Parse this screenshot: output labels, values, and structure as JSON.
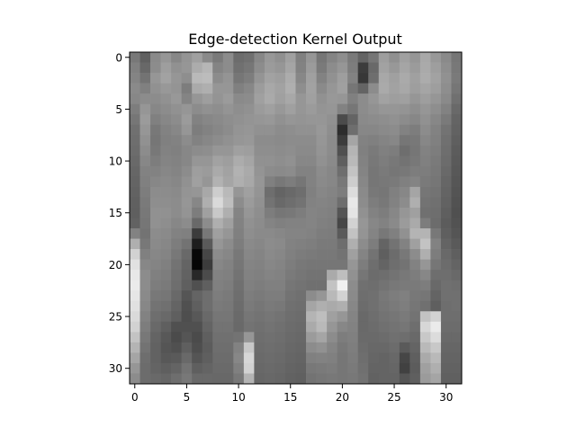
{
  "chart_data": {
    "type": "heatmap",
    "title": "Edge-detection Kernel Output",
    "xlabel": "",
    "ylabel": "",
    "colormap": "gray",
    "xlim": [
      -0.5,
      31.5
    ],
    "ylim": [
      31.5,
      -0.5
    ],
    "xticks": [
      0,
      5,
      10,
      15,
      20,
      25,
      30
    ],
    "yticks": [
      0,
      5,
      10,
      15,
      20,
      25,
      30
    ],
    "grid": false,
    "legend": "none",
    "rows": 32,
    "cols": 32,
    "vmin": 0,
    "vmax": 255,
    "values": [
      [
        120,
        96,
        138,
        150,
        135,
        148,
        160,
        138,
        122,
        140,
        108,
        112,
        135,
        152,
        144,
        160,
        128,
        150,
        118,
        132,
        142,
        122,
        100,
        118,
        158,
        144,
        160,
        150,
        168,
        152,
        138,
        118
      ],
      [
        128,
        104,
        140,
        158,
        145,
        150,
        172,
        182,
        132,
        140,
        112,
        118,
        140,
        155,
        150,
        165,
        130,
        155,
        122,
        140,
        150,
        125,
        60,
        105,
        162,
        152,
        165,
        155,
        170,
        158,
        142,
        120
      ],
      [
        132,
        115,
        150,
        162,
        150,
        142,
        185,
        188,
        140,
        148,
        118,
        125,
        148,
        162,
        158,
        172,
        135,
        160,
        130,
        145,
        158,
        130,
        55,
        110,
        168,
        160,
        170,
        160,
        172,
        162,
        145,
        122
      ],
      [
        138,
        128,
        145,
        152,
        148,
        125,
        170,
        175,
        150,
        150,
        128,
        135,
        156,
        168,
        162,
        175,
        142,
        162,
        138,
        150,
        160,
        118,
        100,
        140,
        170,
        162,
        168,
        158,
        165,
        158,
        142,
        118
      ],
      [
        135,
        140,
        140,
        145,
        152,
        132,
        150,
        158,
        148,
        155,
        138,
        140,
        160,
        170,
        160,
        168,
        150,
        160,
        145,
        152,
        150,
        128,
        140,
        150,
        162,
        158,
        160,
        150,
        158,
        150,
        138,
        112
      ],
      [
        125,
        150,
        135,
        140,
        145,
        150,
        140,
        145,
        142,
        148,
        142,
        145,
        155,
        160,
        152,
        160,
        150,
        155,
        148,
        150,
        130,
        118,
        140,
        145,
        150,
        150,
        148,
        142,
        150,
        142,
        130,
        105
      ],
      [
        118,
        155,
        128,
        135,
        140,
        155,
        130,
        135,
        138,
        142,
        145,
        148,
        150,
        152,
        145,
        150,
        148,
        150,
        150,
        145,
        75,
        100,
        138,
        140,
        142,
        145,
        140,
        135,
        145,
        135,
        122,
        100
      ],
      [
        112,
        150,
        120,
        130,
        135,
        150,
        125,
        130,
        135,
        140,
        148,
        150,
        145,
        145,
        140,
        142,
        145,
        145,
        152,
        142,
        45,
        110,
        135,
        135,
        138,
        140,
        130,
        125,
        140,
        130,
        115,
        98
      ],
      [
        110,
        145,
        118,
        128,
        130,
        140,
        130,
        135,
        140,
        145,
        150,
        152,
        140,
        140,
        138,
        140,
        140,
        140,
        150,
        140,
        60,
        165,
        130,
        128,
        132,
        135,
        118,
        120,
        135,
        128,
        112,
        95
      ],
      [
        108,
        140,
        120,
        130,
        128,
        135,
        140,
        142,
        150,
        150,
        160,
        158,
        142,
        142,
        140,
        142,
        138,
        138,
        148,
        140,
        80,
        180,
        128,
        122,
        128,
        125,
        110,
        118,
        130,
        125,
        110,
        92
      ],
      [
        105,
        135,
        125,
        132,
        130,
        135,
        150,
        150,
        162,
        158,
        172,
        165,
        145,
        145,
        142,
        145,
        135,
        135,
        145,
        138,
        95,
        185,
        130,
        120,
        125,
        120,
        115,
        120,
        128,
        122,
        108,
        90
      ],
      [
        102,
        130,
        130,
        135,
        132,
        140,
        158,
        155,
        170,
        162,
        178,
        170,
        148,
        140,
        138,
        140,
        130,
        130,
        140,
        135,
        110,
        195,
        132,
        118,
        122,
        118,
        120,
        125,
        125,
        120,
        105,
        88
      ],
      [
        100,
        128,
        135,
        138,
        135,
        145,
        160,
        150,
        178,
        165,
        175,
        168,
        150,
        128,
        120,
        125,
        118,
        130,
        138,
        135,
        120,
        205,
        135,
        118,
        120,
        122,
        128,
        132,
        122,
        118,
        102,
        86
      ],
      [
        98,
        125,
        140,
        140,
        138,
        148,
        150,
        168,
        205,
        185,
        150,
        160,
        148,
        110,
        100,
        105,
        110,
        128,
        135,
        132,
        125,
        220,
        138,
        120,
        118,
        128,
        135,
        165,
        118,
        115,
        100,
        84
      ],
      [
        96,
        122,
        142,
        142,
        140,
        150,
        135,
        175,
        218,
        190,
        140,
        155,
        145,
        115,
        105,
        110,
        115,
        130,
        132,
        130,
        110,
        232,
        140,
        125,
        120,
        130,
        140,
        175,
        115,
        112,
        98,
        82
      ],
      [
        95,
        120,
        145,
        145,
        140,
        148,
        125,
        160,
        200,
        175,
        132,
        150,
        142,
        125,
        118,
        120,
        125,
        132,
        130,
        128,
        85,
        228,
        145,
        130,
        125,
        135,
        150,
        160,
        112,
        110,
        95,
        80
      ],
      [
        98,
        118,
        145,
        142,
        135,
        140,
        105,
        140,
        175,
        160,
        130,
        145,
        140,
        132,
        128,
        130,
        130,
        132,
        128,
        126,
        70,
        210,
        150,
        135,
        130,
        138,
        155,
        170,
        125,
        108,
        92,
        82
      ],
      [
        130,
        115,
        140,
        138,
        130,
        128,
        60,
        120,
        160,
        150,
        128,
        142,
        138,
        138,
        135,
        132,
        132,
        130,
        125,
        124,
        90,
        195,
        148,
        132,
        120,
        128,
        145,
        180,
        180,
        120,
        95,
        85
      ],
      [
        175,
        120,
        138,
        135,
        125,
        115,
        30,
        90,
        150,
        140,
        125,
        138,
        135,
        140,
        138,
        130,
        128,
        126,
        122,
        122,
        110,
        175,
        140,
        125,
        100,
        115,
        130,
        160,
        195,
        130,
        100,
        90
      ],
      [
        210,
        128,
        135,
        132,
        120,
        105,
        8,
        70,
        140,
        135,
        120,
        135,
        132,
        138,
        135,
        128,
        124,
        122,
        120,
        120,
        115,
        160,
        132,
        115,
        95,
        108,
        120,
        140,
        175,
        125,
        105,
        95
      ],
      [
        225,
        135,
        132,
        128,
        115,
        100,
        5,
        60,
        135,
        130,
        118,
        132,
        130,
        135,
        132,
        125,
        120,
        118,
        118,
        118,
        118,
        150,
        125,
        110,
        100,
        110,
        115,
        130,
        150,
        118,
        108,
        100
      ],
      [
        232,
        140,
        128,
        125,
        112,
        98,
        40,
        75,
        130,
        128,
        115,
        130,
        128,
        132,
        130,
        122,
        118,
        115,
        115,
        170,
        190,
        145,
        118,
        108,
        110,
        115,
        120,
        125,
        135,
        110,
        110,
        105
      ],
      [
        235,
        140,
        125,
        122,
        110,
        95,
        80,
        95,
        128,
        125,
        112,
        128,
        125,
        128,
        128,
        118,
        115,
        112,
        112,
        195,
        240,
        140,
        112,
        110,
        115,
        120,
        122,
        122,
        125,
        105,
        112,
        110
      ],
      [
        230,
        138,
        120,
        118,
        105,
        85,
        100,
        110,
        125,
        122,
        110,
        125,
        122,
        125,
        125,
        115,
        112,
        140,
        150,
        185,
        210,
        138,
        110,
        112,
        120,
        125,
        128,
        120,
        118,
        100,
        112,
        112
      ],
      [
        225,
        135,
        115,
        112,
        100,
        80,
        95,
        110,
        122,
        120,
        108,
        122,
        118,
        122,
        120,
        112,
        110,
        165,
        175,
        170,
        175,
        135,
        108,
        112,
        118,
        122,
        126,
        118,
        112,
        95,
        110,
        112
      ],
      [
        218,
        130,
        110,
        105,
        95,
        78,
        88,
        105,
        118,
        118,
        106,
        118,
        115,
        118,
        115,
        110,
        108,
        180,
        190,
        160,
        150,
        132,
        105,
        110,
        115,
        118,
        122,
        115,
        195,
        210,
        110,
        110
      ],
      [
        210,
        125,
        105,
        95,
        80,
        80,
        80,
        100,
        115,
        115,
        105,
        115,
        112,
        115,
        112,
        108,
        106,
        170,
        185,
        150,
        135,
        130,
        105,
        108,
        112,
        115,
        118,
        110,
        215,
        235,
        108,
        108
      ],
      [
        195,
        120,
        100,
        88,
        75,
        85,
        75,
        95,
        112,
        112,
        115,
        150,
        110,
        112,
        110,
        106,
        104,
        155,
        165,
        140,
        125,
        128,
        106,
        106,
        108,
        112,
        110,
        105,
        200,
        220,
        105,
        105
      ],
      [
        180,
        115,
        98,
        85,
        80,
        95,
        78,
        92,
        110,
        110,
        130,
        200,
        108,
        110,
        108,
        104,
        102,
        140,
        145,
        132,
        120,
        126,
        108,
        104,
        104,
        108,
        90,
        100,
        185,
        200,
        102,
        102
      ],
      [
        165,
        110,
        98,
        88,
        90,
        105,
        85,
        95,
        108,
        108,
        135,
        215,
        106,
        108,
        106,
        102,
        100,
        128,
        130,
        128,
        118,
        124,
        110,
        102,
        100,
        104,
        70,
        95,
        170,
        185,
        100,
        100
      ],
      [
        150,
        108,
        100,
        95,
        100,
        115,
        95,
        100,
        106,
        106,
        128,
        210,
        104,
        106,
        104,
        100,
        98,
        120,
        122,
        124,
        118,
        122,
        112,
        100,
        100,
        102,
        65,
        92,
        160,
        175,
        98,
        98
      ],
      [
        140,
        108,
        105,
        102,
        110,
        120,
        105,
        105,
        104,
        104,
        120,
        180,
        102,
        104,
        102,
        98,
        96,
        115,
        118,
        120,
        118,
        120,
        114,
        98,
        100,
        100,
        85,
        95,
        155,
        165,
        96,
        96
      ]
    ]
  }
}
